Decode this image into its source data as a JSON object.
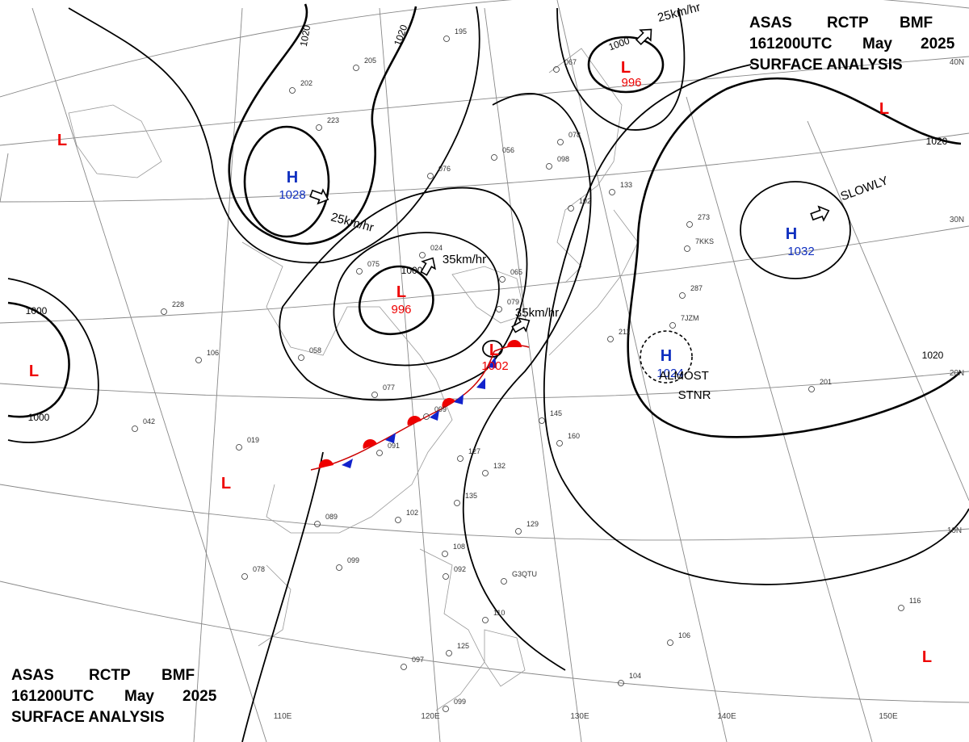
{
  "header": {
    "agency": "ASAS",
    "station": "RCTP",
    "office": "BMF",
    "time": "161200UTC",
    "month": "May",
    "year": "2025",
    "title": "SURFACE ANALYSIS"
  },
  "systems": [
    {
      "type": "H",
      "pressure": "1028"
    },
    {
      "type": "H",
      "pressure": "1032"
    },
    {
      "type": "H",
      "pressure": "1024"
    },
    {
      "type": "L",
      "pressure": "996"
    },
    {
      "type": "L",
      "pressure": "996"
    },
    {
      "type": "L",
      "pressure": "1002"
    },
    {
      "type": "L"
    },
    {
      "type": "L"
    },
    {
      "type": "L"
    },
    {
      "type": "L"
    },
    {
      "type": "L"
    }
  ],
  "isobar_labels": [
    "1020",
    "1020",
    "1000",
    "1020",
    "1020",
    "1000",
    "1000",
    "1000"
  ],
  "motions": [
    "25km/hr",
    "25km/hr",
    "35km/hr",
    "35km/hr",
    "SLOWLY",
    "ALMOST",
    "STNR"
  ],
  "longitudes": [
    "110E",
    "120E",
    "130E",
    "140E",
    "150E"
  ],
  "latitudes": [
    "40N",
    "30N",
    "20N",
    "10N"
  ],
  "stations": [
    "195",
    "205",
    "202",
    "223",
    "076",
    "056",
    "067",
    "078",
    "098",
    "102",
    "133",
    "024",
    "075",
    "065",
    "079",
    "228",
    "106",
    "058",
    "077",
    "099",
    "091",
    "042",
    "019",
    "127",
    "132",
    "135",
    "102",
    "089",
    "078",
    "099",
    "108",
    "092",
    "110",
    "125",
    "097",
    "099",
    "129",
    "145",
    "160",
    "211",
    "287",
    "201",
    "273",
    "116",
    "106",
    "104",
    "G3QTU",
    "7JZM",
    "7KKS"
  ]
}
